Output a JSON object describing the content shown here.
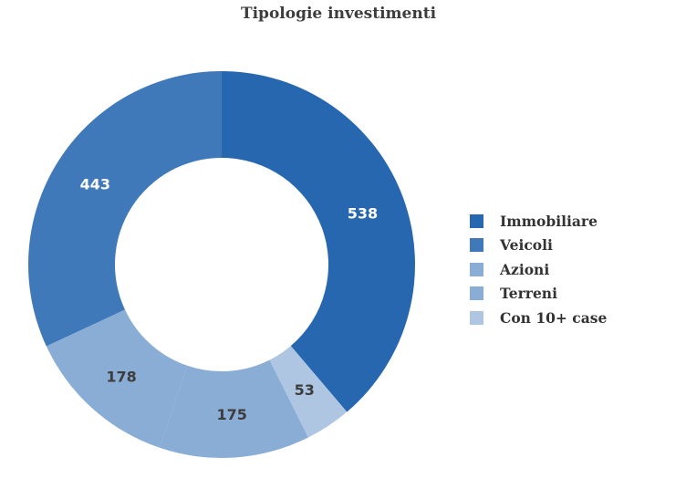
{
  "chart_data": {
    "type": "pie",
    "subtype": "donut",
    "title": "Tipologie investimenti",
    "categories": [
      "Immobiliare",
      "Veicoli",
      "Azioni",
      "Terreni",
      "Con 10+ case"
    ],
    "values": [
      538,
      443,
      178,
      175,
      53
    ],
    "colors": [
      "#2767b0",
      "#3f79ba",
      "#8aadd6",
      "#8aadd6",
      "#afc6e3"
    ],
    "label_colors": [
      "#ffffff",
      "#ffffff",
      "#3d3d3d",
      "#3d3d3d",
      "#3d3d3d"
    ],
    "draw_order_clockwise_from_top": [
      "Immobiliare",
      "Con 10+ case",
      "Terreni",
      "Azioni",
      "Veicoli"
    ],
    "legend_position": "right",
    "data_labels": true
  },
  "title": "Tipologie investimenti",
  "legend": [
    {
      "label": "Immobiliare",
      "color": "#2767b0"
    },
    {
      "label": "Veicoli",
      "color": "#3f79ba"
    },
    {
      "label": "Azioni",
      "color": "#8aadd6"
    },
    {
      "label": "Terreni",
      "color": "#8aadd6"
    },
    {
      "label": "Con 10+ case",
      "color": "#afc6e3"
    }
  ]
}
